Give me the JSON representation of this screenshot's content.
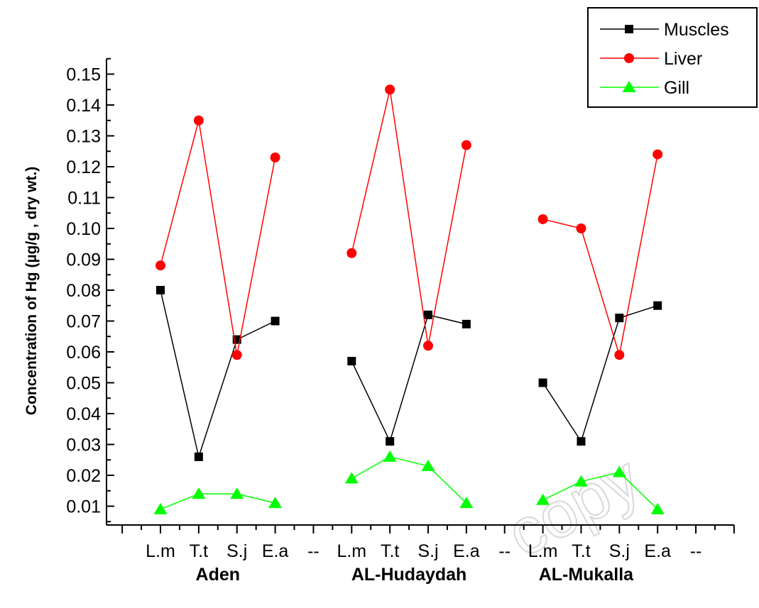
{
  "chart_data": {
    "type": "line",
    "title": "",
    "ylabel": "Concentration of Hg (µg/g , dry wt.)",
    "xlabel": "",
    "ylim": [
      0.005,
      0.155
    ],
    "yticks": [
      "0.01",
      "0.02",
      "0.03",
      "0.04",
      "0.05",
      "0.06",
      "0.07",
      "0.08",
      "0.09",
      "0.10",
      "0.11",
      "0.12",
      "0.13",
      "0.14",
      "0.15"
    ],
    "categories": [
      "L.m",
      "T.t",
      "S.j",
      "E.a",
      "--",
      "L.m",
      "T.t",
      "S.j",
      "E.a",
      "--",
      "L.m",
      "T.t",
      "S.j",
      "E.a",
      "--"
    ],
    "groups": [
      {
        "label": "Aden",
        "category_range": [
          0,
          3
        ]
      },
      {
        "label": "AL-Hudaydah",
        "category_range": [
          5,
          8
        ]
      },
      {
        "label": "AL-Mukalla",
        "category_range": [
          10,
          13
        ]
      }
    ],
    "series": [
      {
        "name": "Muscles",
        "color": "#000000",
        "marker": "square",
        "values": [
          0.08,
          0.026,
          0.064,
          0.07,
          null,
          0.057,
          0.031,
          0.072,
          0.069,
          null,
          0.05,
          0.031,
          0.071,
          0.075,
          null
        ]
      },
      {
        "name": "Liver",
        "color": "#ff0000",
        "marker": "circle",
        "values": [
          0.088,
          0.135,
          0.059,
          0.123,
          null,
          0.092,
          0.145,
          0.062,
          0.127,
          null,
          0.103,
          0.1,
          0.059,
          0.124,
          null
        ]
      },
      {
        "name": "Gill",
        "color": "#00ff00",
        "marker": "triangle",
        "values": [
          0.009,
          0.014,
          0.014,
          0.011,
          null,
          0.019,
          0.026,
          0.023,
          0.011,
          null,
          0.012,
          0.018,
          0.021,
          0.009,
          null
        ]
      }
    ],
    "legend_position": "top-right",
    "grid": false
  },
  "watermark": "copy"
}
